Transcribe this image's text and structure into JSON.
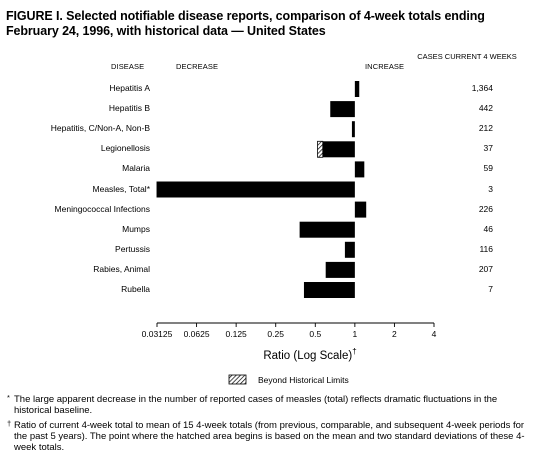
{
  "title": "FIGURE I. Selected notifiable disease reports, comparison of 4-week totals ending February 24, 1996, with historical data — United States",
  "headers": {
    "disease": "DISEASE",
    "decrease": "DECREASE",
    "increase": "INCREASE",
    "cases": "CASES CURRENT 4 WEEKS"
  },
  "legend": {
    "label": "Beyond Historical Limits",
    "icon": "hatched-box-icon"
  },
  "footnotes": [
    {
      "symbol": "*",
      "text": "The large apparent decrease in the number of reported cases of measles (total) reflects dramatic fluctuations in the historical baseline."
    },
    {
      "symbol": "†",
      "text": "Ratio of current 4-week total to mean of 15 4-week totals (from previous, comparable, and subsequent 4-week periods for the past 5 years). The point where the hatched area begins is based on the mean and two standard deviations of these 4-week totals."
    }
  ],
  "chart_data": {
    "type": "bar",
    "orientation": "horizontal",
    "title": "FIGURE I. Selected notifiable disease reports, comparison of 4-week totals ending February 24, 1996, with historical data — United States",
    "xlabel": "Ratio (Log Scale)",
    "xlabel_mark": "†",
    "x_scale": "log2",
    "xlim": [
      0.03125,
      4
    ],
    "baseline": 1,
    "x_ticks": [
      "0.03125",
      "0.0625",
      "0.125",
      "0.25",
      "0.5",
      "1",
      "2",
      "4"
    ],
    "x_tick_values": [
      0.03125,
      0.0625,
      0.125,
      0.25,
      0.5,
      1,
      2,
      4
    ],
    "grid": false,
    "categories": [
      "Hepatitis A",
      "Hepatitis B",
      "Hepatitis, C/Non-A, Non-B",
      "Legionellosis",
      "Malaria",
      "Measles, Total*",
      "Meningococcal Infections",
      "Mumps",
      "Pertussis",
      "Rabies, Animal",
      "Rubella"
    ],
    "values": [
      1.08,
      0.65,
      0.95,
      0.52,
      1.18,
      0.031,
      1.22,
      0.38,
      0.84,
      0.6,
      0.41
    ],
    "beyond_historical_limits": [
      null,
      null,
      null,
      0.57,
      null,
      null,
      null,
      null,
      null,
      null,
      null
    ],
    "cases_current_4_weeks": [
      "1,364",
      "442",
      "212",
      "37",
      "59",
      "3",
      "226",
      "46",
      "116",
      "207",
      "7"
    ]
  }
}
